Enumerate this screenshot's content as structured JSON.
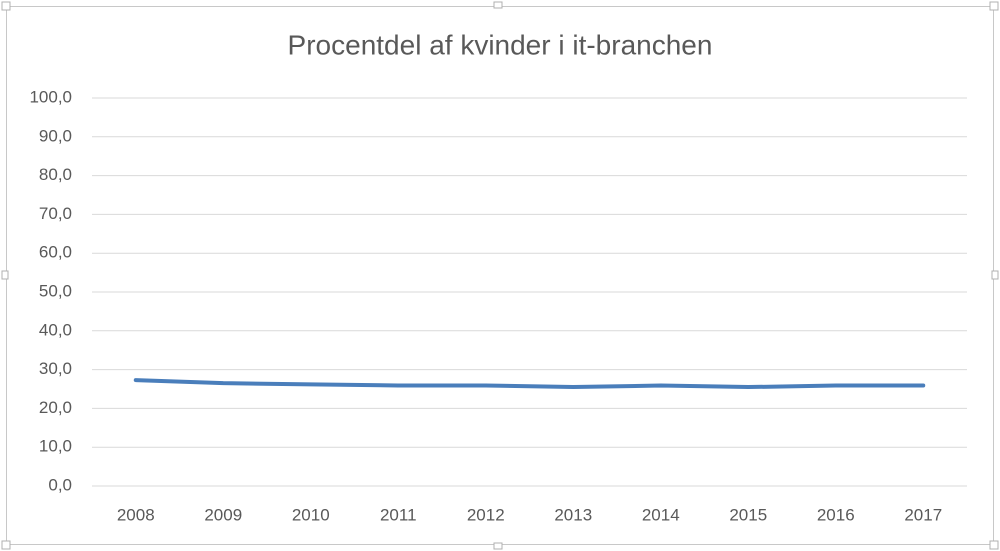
{
  "chart_data": {
    "type": "line",
    "title": "Procentdel af kvinder i it-branchen",
    "categories": [
      "2008",
      "2009",
      "2010",
      "2011",
      "2012",
      "2013",
      "2014",
      "2015",
      "2016",
      "2017"
    ],
    "values": [
      27.3,
      26.5,
      26.2,
      25.9,
      25.9,
      25.5,
      25.9,
      25.5,
      25.9,
      25.9
    ],
    "color": "#4a7ebb",
    "ylim": [
      0,
      100
    ],
    "yticks": [
      {
        "value": 0,
        "label": "0,0"
      },
      {
        "value": 10,
        "label": "10,0"
      },
      {
        "value": 20,
        "label": "20,0"
      },
      {
        "value": 30,
        "label": "30,0"
      },
      {
        "value": 40,
        "label": "40,0"
      },
      {
        "value": 50,
        "label": "50,0"
      },
      {
        "value": 60,
        "label": "60,0"
      },
      {
        "value": 70,
        "label": "70,0"
      },
      {
        "value": 80,
        "label": "80,0"
      },
      {
        "value": 90,
        "label": "90,0"
      },
      {
        "value": 100,
        "label": "100,0"
      }
    ],
    "grid": true
  }
}
